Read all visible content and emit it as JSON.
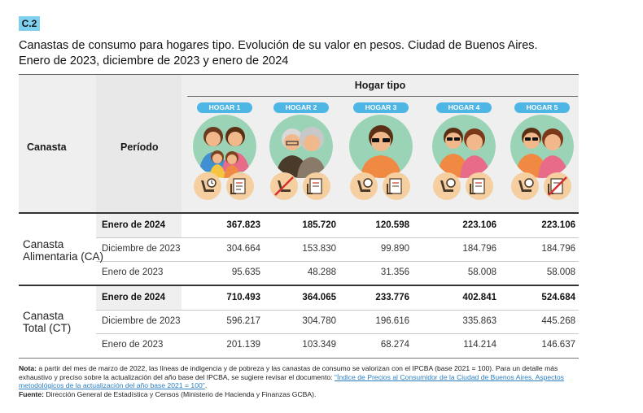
{
  "badge": "C.2",
  "title_line1": "Canastas de consumo para hogares tipo. Evolución de su valor en pesos. Ciudad de Buenos Aires.",
  "title_line2": "Enero de 2023, diciembre de 2023 y enero de 2024",
  "header": {
    "canasta": "Canasta",
    "periodo": "Período",
    "hogar_tipo": "Hogar tipo",
    "hogares": [
      "HOGAR 1",
      "HOGAR 2",
      "HOGAR 3",
      "HOGAR 4",
      "HOGAR 5"
    ]
  },
  "groups": [
    {
      "label_line1": "Canasta",
      "label_line2": "Alimentaria (CA)",
      "rows": [
        {
          "period": "Enero de 2024",
          "values": [
            "367.823",
            "185.720",
            "120.598",
            "223.106",
            "223.106"
          ]
        },
        {
          "period": "Diciembre de 2023",
          "values": [
            "304.664",
            "153.830",
            "99.890",
            "184.796",
            "184.796"
          ]
        },
        {
          "period": "Enero de 2023",
          "values": [
            "95.635",
            "48.288",
            "31.356",
            "58.008",
            "58.008"
          ]
        }
      ]
    },
    {
      "label_line1": "Canasta",
      "label_line2": "Total (CT)",
      "rows": [
        {
          "period": "Enero de 2024",
          "values": [
            "710.493",
            "364.065",
            "233.776",
            "402.841",
            "524.684"
          ]
        },
        {
          "period": "Diciembre de 2023",
          "values": [
            "596.217",
            "304.780",
            "196.616",
            "335.863",
            "445.268"
          ]
        },
        {
          "period": "Enero de 2023",
          "values": [
            "201.139",
            "103.349",
            "68.274",
            "114.214",
            "146.637"
          ]
        }
      ]
    }
  ],
  "note": {
    "nota_label": "Nota:",
    "nota_text": " a partir del mes de marzo de 2022, las líneas de indigencia y de pobreza y las canastas de consumo se valorizan con el IPCBA (base 2021 = 100). Para un detalle más exhaustivo y preciso sobre la actualización del año base del IPCBA, se sugiere revisar el documento: ",
    "link": "\"Índice de Precios al Consumidor de la Ciudad de Buenos Aires. Aspectos metodológicos de la actualización del año base 2021 = 100\"",
    "link_end": ".",
    "fuente_label": "Fuente:",
    "fuente_text": " Dirección General de Estadística y Censos (Ministerio de Hacienda y Finanzas GCBA)."
  },
  "colors": {
    "badge": "#7fd0ee",
    "pill": "#4db6e4",
    "avatar_bg": "#9bd3b6",
    "skin": "#f1b98b",
    "hair_dark": "#6b3a1e",
    "hair_grey": "#c8c8c8",
    "shirt_blue": "#3f8fd1",
    "shirt_pink": "#e86b8a",
    "shirt_orange": "#f08a43",
    "link": "#2a7fc0"
  },
  "icons": [
    "baby-seat-icon",
    "clock-icon",
    "document-icon",
    "prohibited-icon",
    "sunglasses-icon"
  ]
}
